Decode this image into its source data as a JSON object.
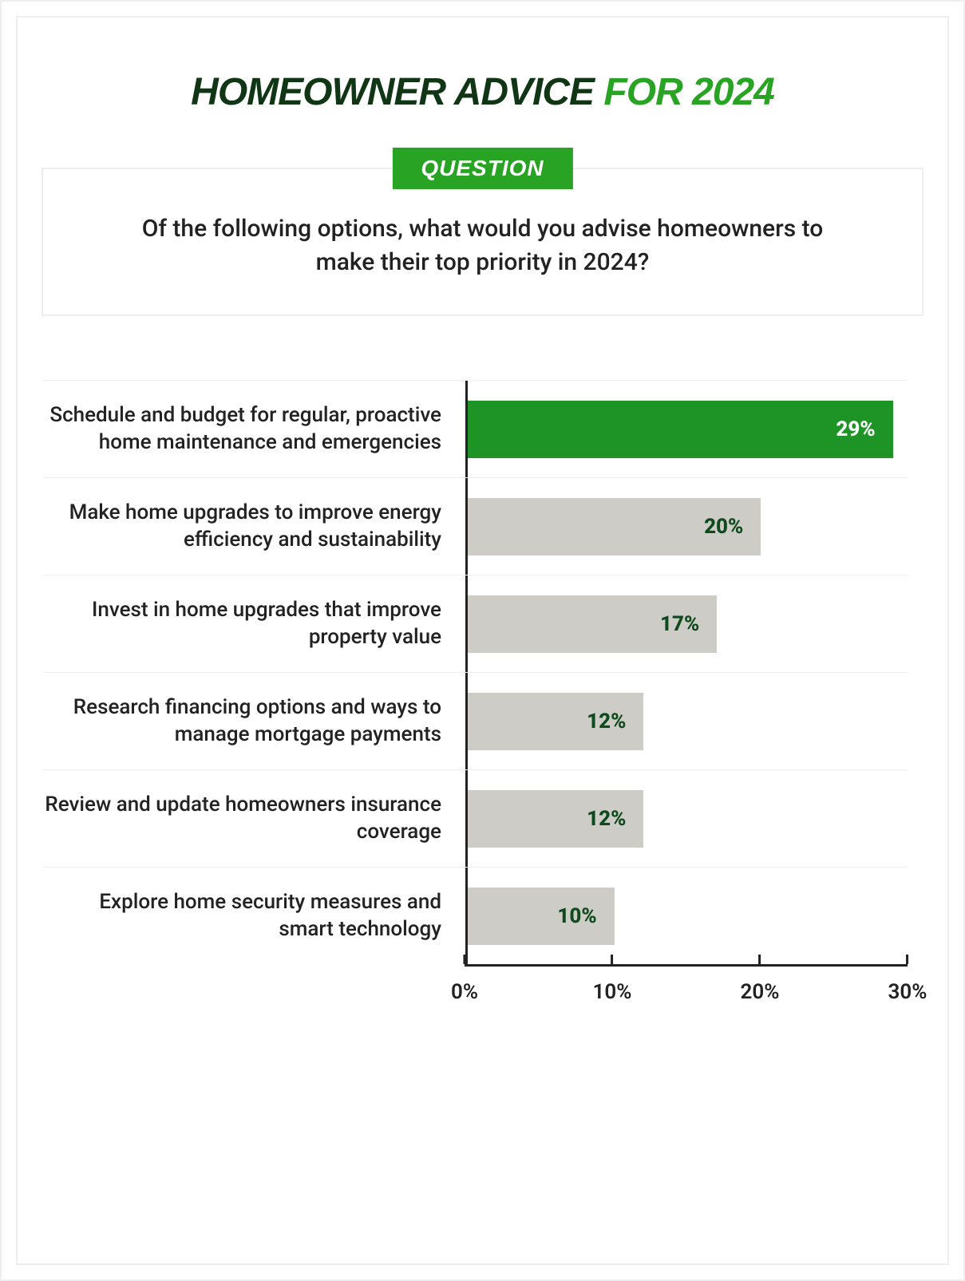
{
  "title": {
    "part1": "HOMEOWNER ADVICE",
    "part2": "FOR 2024"
  },
  "question": {
    "badge": "QUESTION",
    "text": "Of the following options, what would you advise homeowners to make their top priority in 2024?"
  },
  "chart": {
    "type": "horizontal_bar",
    "xmax_percent": 30,
    "ticks": [
      "0%",
      "10%",
      "20%",
      "30%"
    ],
    "tick_positions_pct": [
      0,
      33.333,
      66.666,
      100
    ],
    "highlight_bar_color": "#1e9326",
    "highlight_text_color": "#ffffff",
    "default_bar_color": "#cdccc7",
    "default_text_color": "#0f4a1d",
    "axis_color": "#222222",
    "row_divider_color": "#eeeeee",
    "label_color": "#222222",
    "label_fontsize": 26,
    "value_fontsize": 26,
    "bars": [
      {
        "label": "Schedule and budget for regular, proactive home maintenance and emergencies",
        "value": 29,
        "display": "29%",
        "highlight": true
      },
      {
        "label": "Make home upgrades to improve energy efficiency and sustainability",
        "value": 20,
        "display": "20%",
        "highlight": false
      },
      {
        "label": "Invest in home upgrades that improve property value",
        "value": 17,
        "display": "17%",
        "highlight": false
      },
      {
        "label": "Research financing options and ways to manage mortgage payments",
        "value": 12,
        "display": "12%",
        "highlight": false
      },
      {
        "label": "Review and update homeowners insurance coverage",
        "value": 12,
        "display": "12%",
        "highlight": false
      },
      {
        "label": "Explore home security measures and smart technology",
        "value": 10,
        "display": "10%",
        "highlight": false
      }
    ]
  }
}
